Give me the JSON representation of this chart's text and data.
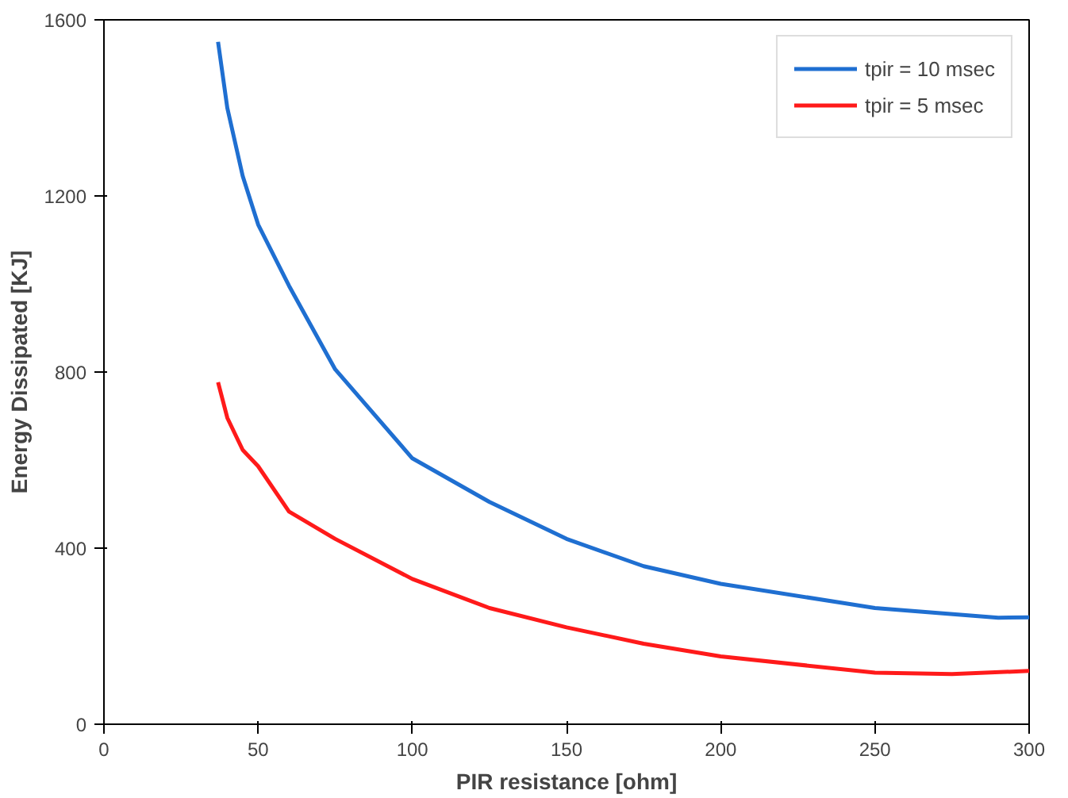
{
  "chart_data": {
    "type": "line",
    "xlabel": "PIR resistance [ohm]",
    "ylabel": "Energy Dissipated [KJ]",
    "xlim": [
      0,
      300
    ],
    "ylim": [
      0,
      1600
    ],
    "xticks": [
      0,
      50,
      100,
      150,
      200,
      250,
      300
    ],
    "yticks": [
      0,
      400,
      800,
      1200,
      1600
    ],
    "grid": false,
    "legend": "top right",
    "marker": "none",
    "line_style": "solid",
    "series": [
      {
        "name": "tpir = 10 msec",
        "color": "#1f6fd1",
        "x": [
          37,
          40,
          45,
          50,
          60,
          75,
          100,
          125,
          150,
          175,
          200,
          250,
          290,
          300
        ],
        "values": [
          1550,
          1400,
          1245,
          1135,
          996,
          806,
          604,
          505,
          421,
          359,
          319,
          264,
          242,
          243
        ]
      },
      {
        "name": "tpir = 5 msec",
        "color": "#ff1a1a",
        "x": [
          37,
          40,
          45,
          50,
          60,
          75,
          100,
          125,
          150,
          175,
          200,
          250,
          275,
          300
        ],
        "values": [
          777,
          696,
          623,
          586,
          483,
          421,
          330,
          264,
          220,
          183,
          154,
          117,
          114,
          121
        ]
      }
    ]
  }
}
